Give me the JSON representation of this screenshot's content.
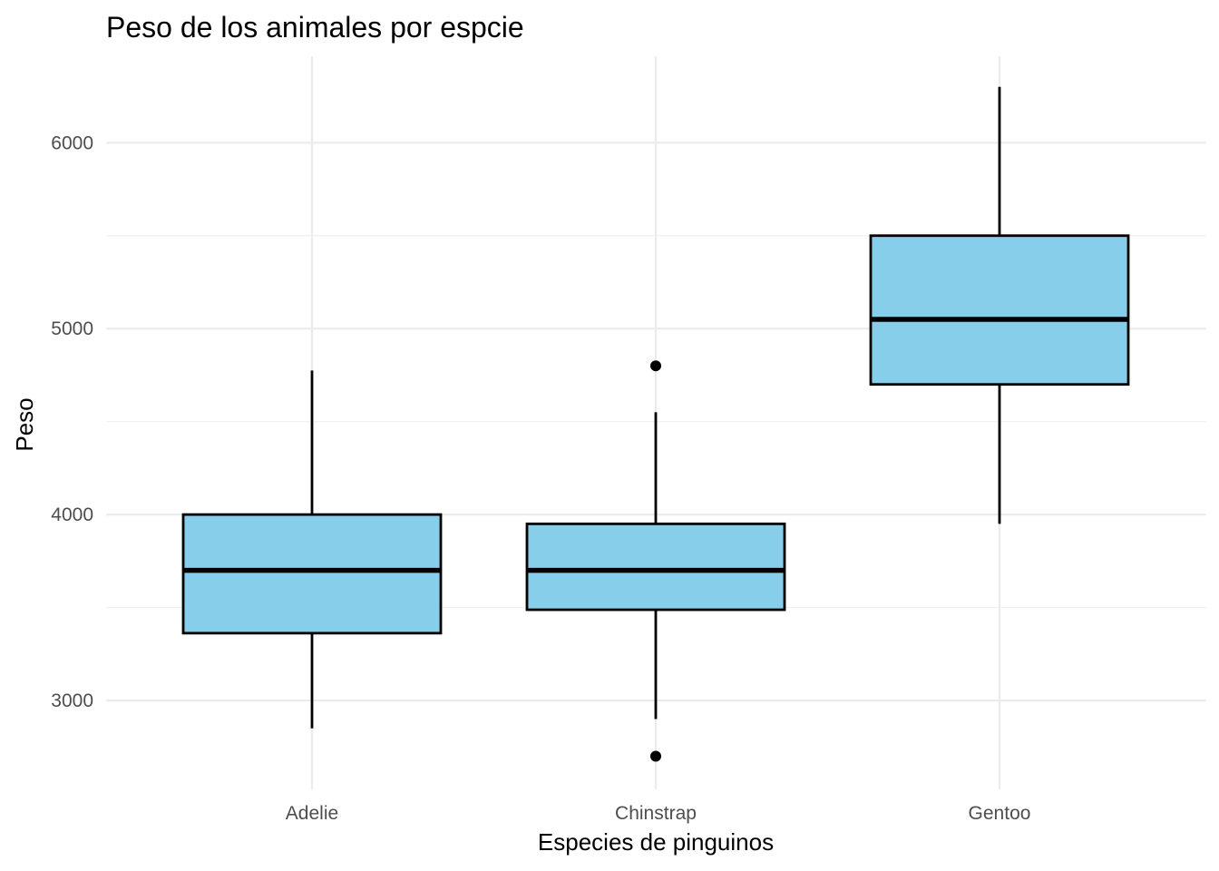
{
  "chart_data": {
    "type": "boxplot",
    "title": "Peso de los animales por espcie",
    "xlabel": "Especies de pinguinos",
    "ylabel": "Peso",
    "categories": [
      "Adelie",
      "Chinstrap",
      "Gentoo"
    ],
    "yticks": [
      3000,
      4000,
      5000,
      6000
    ],
    "ylim": [
      2522,
      6465
    ],
    "grid": true,
    "box_fill": "#87CEEB",
    "box_stroke": "#000000",
    "boxes": [
      {
        "category": "Adelie",
        "whisker_low": 2850,
        "q1": 3362,
        "median": 3700,
        "q3": 4000,
        "whisker_high": 4775,
        "outliers": []
      },
      {
        "category": "Chinstrap",
        "whisker_low": 2900,
        "q1": 3488,
        "median": 3700,
        "q3": 3950,
        "whisker_high": 4550,
        "outliers": [
          4800,
          2700
        ]
      },
      {
        "category": "Gentoo",
        "whisker_low": 3950,
        "q1": 4700,
        "median": 5050,
        "q3": 5500,
        "whisker_high": 6300,
        "outliers": []
      }
    ]
  }
}
